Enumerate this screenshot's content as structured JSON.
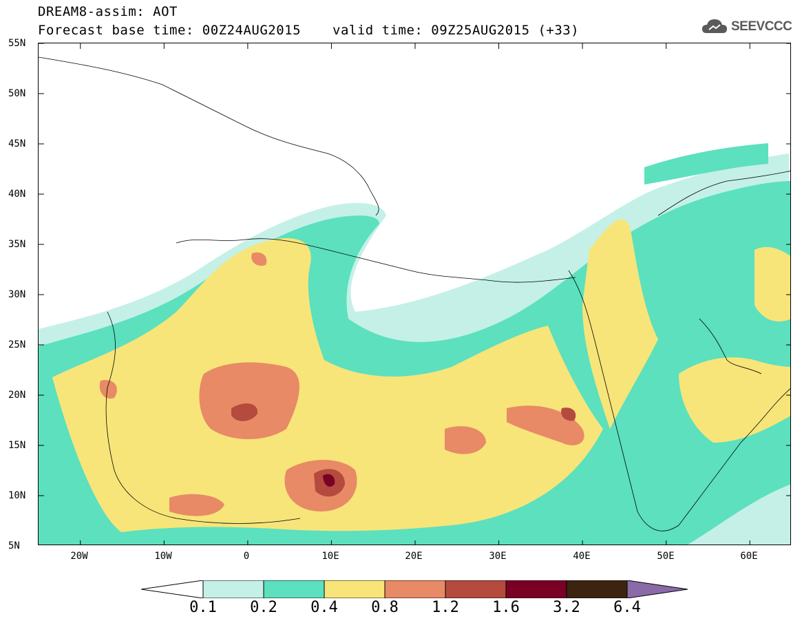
{
  "header": {
    "title": "DREAM8-assim: AOT",
    "base_time": "Forecast base time: 00Z24AUG2015",
    "valid_time": "valid time: 09Z25AUG2015 (+33)",
    "logo_text": "SEEVCCC"
  },
  "map": {
    "variable": "AOT",
    "lon_range": [
      -25,
      65
    ],
    "lat_range": [
      5,
      55
    ],
    "lat_labels": [
      "55N",
      "50N",
      "45N",
      "40N",
      "35N",
      "30N",
      "25N",
      "20N",
      "15N",
      "10N",
      "5N"
    ],
    "lon_labels": [
      "20W",
      "10W",
      "0",
      "10E",
      "20E",
      "30E",
      "40E",
      "50E",
      "60E"
    ]
  },
  "colorbar": {
    "levels": [
      "0.1",
      "0.2",
      "0.4",
      "0.8",
      "1.2",
      "1.6",
      "3.2",
      "6.4"
    ],
    "colors": [
      "#ffffff",
      "#c4f0e8",
      "#5ce0be",
      "#f7e57a",
      "#e88a66",
      "#b44b3e",
      "#7a0026",
      "#3c2410",
      "#8a6aa8"
    ]
  }
}
